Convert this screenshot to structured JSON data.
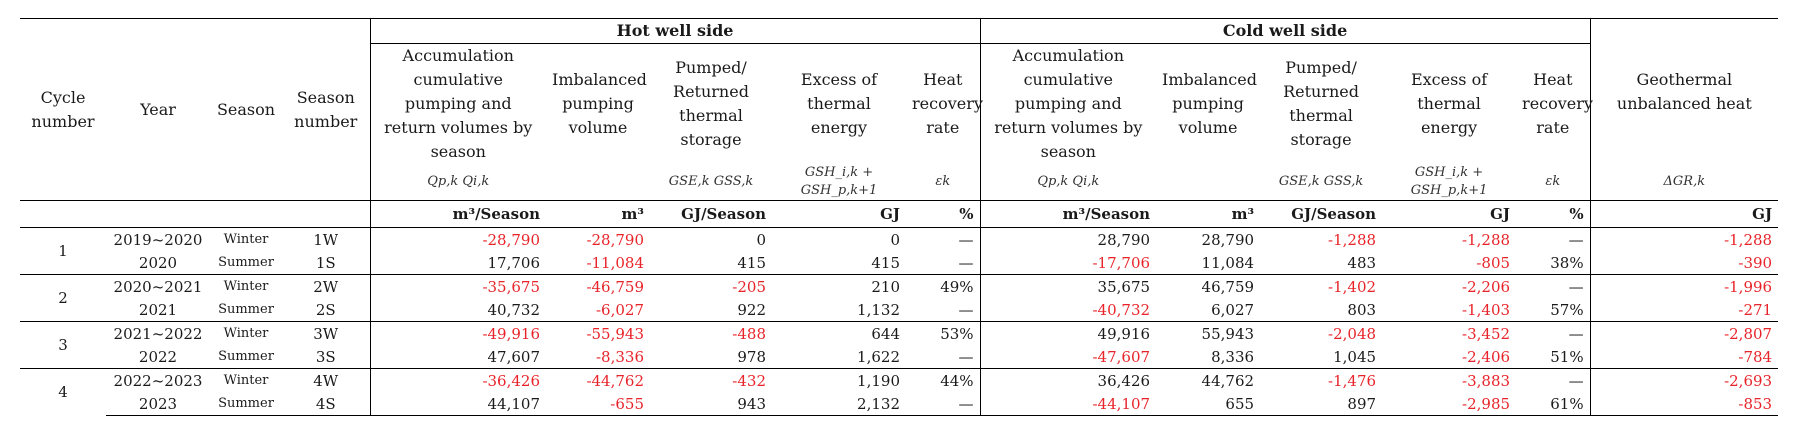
{
  "header": {
    "cycle_number": "Cycle number",
    "year": "Year",
    "season": "Season",
    "season_number": "Season number",
    "hot_group": "Hot well side",
    "cold_group": "Cold well side",
    "accumulation": "Accumulation cumulative pumping and return volumes by season",
    "imbalanced": "Imbalanced pumping volume",
    "pumped": "Pumped/ Returned thermal storage",
    "excess": "Excess of thermal energy",
    "heat_recovery": "Heat recovery rate",
    "geothermal": "Geothermal unbalanced heat",
    "sym_accum": "Qp,k   Qi,k",
    "sym_pumped": "GSE,k  GSS,k",
    "sym_excess": "GSH_i,k + GSH_p,k+1",
    "sym_rate": "εk",
    "sym_geo": "ΔGR,k"
  },
  "units": {
    "accum": "m³/Season",
    "imbal": "m³",
    "pumped": "GJ/Season",
    "excess": "GJ",
    "rate": "%",
    "geo": "GJ"
  },
  "rows": [
    {
      "cycle": "1",
      "year": "2019~2020",
      "season": "Winter",
      "season_no": "1W",
      "h_accum": "-28,790",
      "h_imbal": "-28,790",
      "h_pumped": "0",
      "h_excess": "0",
      "h_rate": "—",
      "c_accum": "28,790",
      "c_imbal": "28,790",
      "c_pumped": "-1,288",
      "c_excess": "-1,288",
      "c_rate": "—",
      "geo": "-1,288"
    },
    {
      "cycle": "",
      "year": "2020",
      "season": "Summer",
      "season_no": "1S",
      "h_accum": "17,706",
      "h_imbal": "-11,084",
      "h_pumped": "415",
      "h_excess": "415",
      "h_rate": "—",
      "c_accum": "-17,706",
      "c_imbal": "11,084",
      "c_pumped": "483",
      "c_excess": "-805",
      "c_rate": "38%",
      "geo": "-390"
    },
    {
      "cycle": "2",
      "year": "2020~2021",
      "season": "Winter",
      "season_no": "2W",
      "h_accum": "-35,675",
      "h_imbal": "-46,759",
      "h_pumped": "-205",
      "h_excess": "210",
      "h_rate": "49%",
      "c_accum": "35,675",
      "c_imbal": "46,759",
      "c_pumped": "-1,402",
      "c_excess": "-2,206",
      "c_rate": "—",
      "geo": "-1,996"
    },
    {
      "cycle": "",
      "year": "2021",
      "season": "Summer",
      "season_no": "2S",
      "h_accum": "40,732",
      "h_imbal": "-6,027",
      "h_pumped": "922",
      "h_excess": "1,132",
      "h_rate": "—",
      "c_accum": "-40,732",
      "c_imbal": "6,027",
      "c_pumped": "803",
      "c_excess": "-1,403",
      "c_rate": "57%",
      "geo": "-271"
    },
    {
      "cycle": "3",
      "year": "2021~2022",
      "season": "Winter",
      "season_no": "3W",
      "h_accum": "-49,916",
      "h_imbal": "-55,943",
      "h_pumped": "-488",
      "h_excess": "644",
      "h_rate": "53%",
      "c_accum": "49,916",
      "c_imbal": "55,943",
      "c_pumped": "-2,048",
      "c_excess": "-3,452",
      "c_rate": "—",
      "geo": "-2,807"
    },
    {
      "cycle": "",
      "year": "2022",
      "season": "Summer",
      "season_no": "3S",
      "h_accum": "47,607",
      "h_imbal": "-8,336",
      "h_pumped": "978",
      "h_excess": "1,622",
      "h_rate": "—",
      "c_accum": "-47,607",
      "c_imbal": "8,336",
      "c_pumped": "1,045",
      "c_excess": "-2,406",
      "c_rate": "51%",
      "geo": "-784"
    },
    {
      "cycle": "4",
      "year": "2022~2023",
      "season": "Winter",
      "season_no": "4W",
      "h_accum": "-36,426",
      "h_imbal": "-44,762",
      "h_pumped": "-432",
      "h_excess": "1,190",
      "h_rate": "44%",
      "c_accum": "36,426",
      "c_imbal": "44,762",
      "c_pumped": "-1,476",
      "c_excess": "-3,883",
      "c_rate": "—",
      "geo": "-2,693"
    },
    {
      "cycle": "",
      "year": "2023",
      "season": "Summer",
      "season_no": "4S",
      "h_accum": "44,107",
      "h_imbal": "-655",
      "h_pumped": "943",
      "h_excess": "2,132",
      "h_rate": "—",
      "c_accum": "-44,107",
      "c_imbal": "655",
      "c_pumped": "897",
      "c_excess": "-2,985",
      "c_rate": "61%",
      "geo": "-853"
    }
  ]
}
